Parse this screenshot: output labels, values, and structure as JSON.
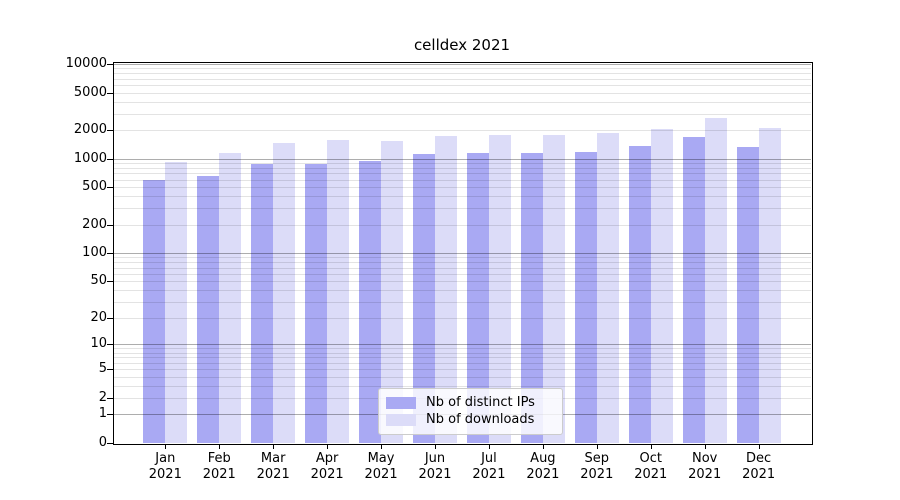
{
  "title": "celldex 2021",
  "colors": {
    "distinct_ips": "#a9a9f3",
    "downloads": "#dcdcf8",
    "major_gridline": "rgba(0,0,0,0.32)",
    "minor_gridline": "rgba(0,0,0,0.11)",
    "axis": "#000000",
    "legend_border": "#cccccc"
  },
  "chart_data": {
    "type": "bar",
    "title": "celldex 2021",
    "xlabel": "",
    "ylabel": "",
    "yscale": "log1p",
    "ylim": [
      0,
      10500
    ],
    "grid": "on",
    "legend_position": "lower center",
    "categories": [
      "Jan 2021",
      "Feb 2021",
      "Mar 2021",
      "Apr 2021",
      "May 2021",
      "Jun 2021",
      "Jul 2021",
      "Aug 2021",
      "Sep 2021",
      "Oct 2021",
      "Nov 2021",
      "Dec 2021"
    ],
    "series": [
      {
        "name": "Nb of distinct IPs",
        "color": "#a9a9f3",
        "values": [
          600,
          660,
          880,
          890,
          940,
          1120,
          1160,
          1150,
          1190,
          1350,
          1700,
          1330
        ]
      },
      {
        "name": "Nb of downloads",
        "color": "#dcdcf8",
        "values": [
          930,
          1150,
          1460,
          1570,
          1530,
          1720,
          1790,
          1760,
          1860,
          2050,
          2660,
          2120
        ]
      }
    ],
    "y_ticks": [
      0,
      1,
      2,
      5,
      10,
      20,
      50,
      100,
      200,
      500,
      1000,
      2000,
      5000,
      10000
    ],
    "gridlines": {
      "major": [
        1,
        10,
        100,
        1000,
        10000
      ],
      "minor": [
        2,
        3,
        4,
        5,
        6,
        7,
        8,
        9,
        20,
        30,
        40,
        50,
        60,
        70,
        80,
        90,
        200,
        300,
        400,
        500,
        600,
        700,
        800,
        900,
        2000,
        3000,
        4000,
        5000,
        6000,
        7000,
        8000,
        9000
      ]
    }
  }
}
